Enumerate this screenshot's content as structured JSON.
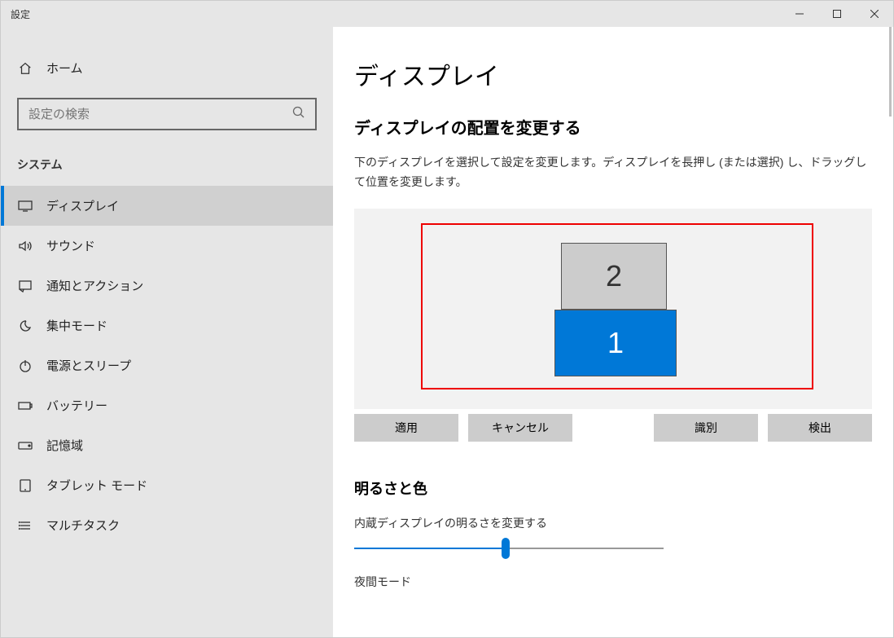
{
  "window": {
    "title": "設定"
  },
  "sidebar": {
    "home_label": "ホーム",
    "search_placeholder": "設定の検索",
    "section": "システム",
    "items": [
      {
        "label": "ディスプレイ",
        "selected": true
      },
      {
        "label": "サウンド",
        "selected": false
      },
      {
        "label": "通知とアクション",
        "selected": false
      },
      {
        "label": "集中モード",
        "selected": false
      },
      {
        "label": "電源とスリープ",
        "selected": false
      },
      {
        "label": "バッテリー",
        "selected": false
      },
      {
        "label": "記憶域",
        "selected": false
      },
      {
        "label": "タブレット モード",
        "selected": false
      },
      {
        "label": "マルチタスク",
        "selected": false
      }
    ]
  },
  "content": {
    "title": "ディスプレイ",
    "arrange": {
      "heading": "ディスプレイの配置を変更する",
      "description": "下のディスプレイを選択して設定を変更します。ディスプレイを長押し (または選択) し、ドラッグして位置を変更します。",
      "monitors": {
        "1": "1",
        "2": "2"
      },
      "buttons": {
        "apply": "適用",
        "cancel": "キャンセル",
        "identify": "識別",
        "detect": "検出"
      }
    },
    "brightness": {
      "heading": "明るさと色",
      "label": "内蔵ディスプレイの明るさを変更する",
      "slider_percent": 49
    },
    "night_mode_label": "夜間モード"
  },
  "colors": {
    "accent": "#0078d7",
    "sidebar_bg": "#e6e6e6",
    "highlight_border": "#ee0000",
    "button_bg": "#cccccc",
    "arrange_bg": "#f2f2f2"
  }
}
